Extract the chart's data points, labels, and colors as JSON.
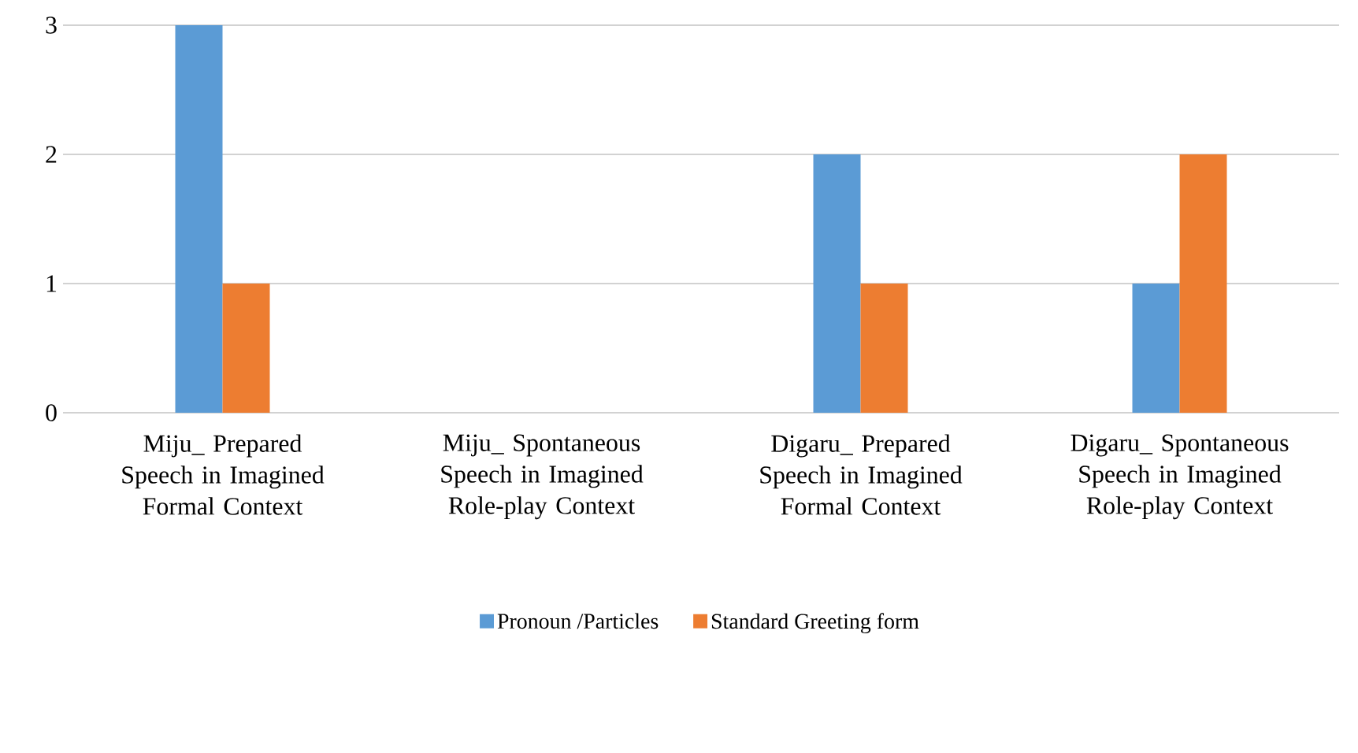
{
  "chart_data": {
    "type": "bar",
    "categories": [
      "Miju_ Prepared Speech in Imagined Formal Context",
      "Miju_ Spontaneous Speech in Imagined Role-play Context",
      "Digaru_ Prepared Speech in Imagined Formal Context",
      "Digaru_ Spontaneous Speech in Imagined Role-play Context"
    ],
    "series": [
      {
        "name": "Pronoun /Particles",
        "color": "#5b9bd5",
        "values": [
          3,
          0,
          2,
          1
        ]
      },
      {
        "name": "Standard Greeting form",
        "color": "#ed7d31",
        "values": [
          1,
          0,
          1,
          2
        ]
      }
    ],
    "ylim": [
      0,
      3
    ],
    "yticks": [
      0,
      1,
      2,
      3
    ],
    "grid": "y",
    "legend": "bottom"
  }
}
